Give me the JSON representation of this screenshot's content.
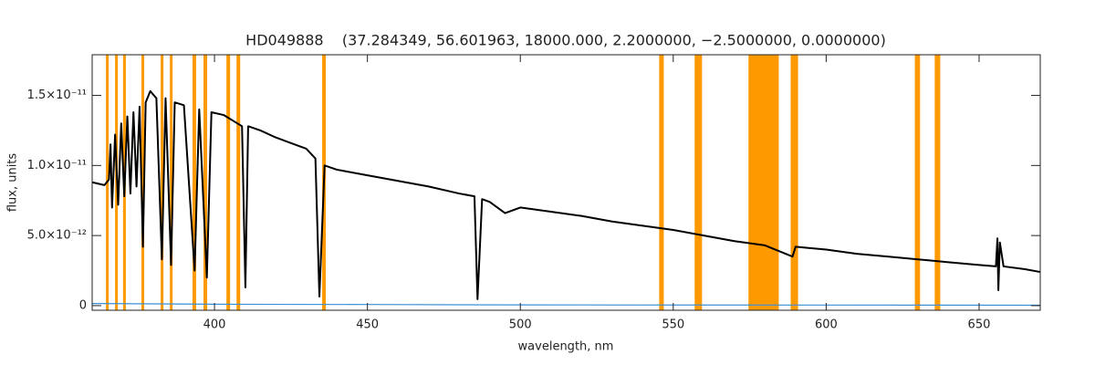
{
  "chart_data": {
    "type": "line",
    "title": "HD049888    (37.284349, 56.601963, 18000.000, 2.2000000, −2.5000000, 0.0000000)",
    "x_label": "wavelength, nm",
    "y_label": "flux, units",
    "xlim": [
      360,
      670
    ],
    "ylim": [
      -3.3e-13,
      1.79e-11
    ],
    "xticks": [
      400,
      450,
      500,
      550,
      600,
      650
    ],
    "yticks": [
      0,
      {
        "value": 5e-12,
        "label": "5.0×10⁻¹²"
      },
      {
        "value": 1e-11,
        "label": "1.0×10⁻¹¹"
      },
      {
        "value": 1.5e-11,
        "label": "1.5×10⁻¹¹"
      }
    ],
    "bands_color": "#ff9900",
    "bands": [
      [
        364.5,
        365.4
      ],
      [
        367.5,
        368.4
      ],
      [
        370.1,
        371.0
      ],
      [
        376.1,
        377.0
      ],
      [
        382.4,
        383.3
      ],
      [
        385.4,
        386.3
      ],
      [
        392.8,
        394.0
      ],
      [
        396.4,
        397.6
      ],
      [
        403.9,
        405.1
      ],
      [
        407.2,
        408.4
      ],
      [
        435.2,
        436.4
      ],
      [
        545.4,
        546.9
      ],
      [
        557.0,
        559.4
      ],
      [
        574.6,
        584.5
      ],
      [
        588.4,
        590.8
      ],
      [
        629.0,
        630.7
      ],
      [
        635.5,
        637.3
      ]
    ],
    "series": [
      {
        "color": "#000000",
        "x": [
          360,
          364,
          365.5,
          366,
          366.5,
          367.5,
          368.5,
          369.5,
          370.5,
          371.5,
          372.5,
          373.5,
          374.5,
          375.5,
          376.6,
          377.5,
          379,
          381,
          382.8,
          384,
          385.8,
          387,
          390,
          393.5,
          395,
          397.5,
          399,
          403,
          406,
          409,
          410.1,
          411,
          415,
          420,
          425,
          430,
          433,
          434.3,
          436,
          440,
          450,
          460,
          470,
          480,
          485,
          486,
          487.5,
          490,
          495,
          500,
          510,
          520,
          530,
          540,
          550,
          560,
          570,
          580,
          589,
          590,
          600,
          610,
          620,
          630,
          640,
          650,
          655.5,
          656,
          656.3,
          656.8,
          658,
          665,
          670
        ],
        "values": [
          8.8e-12,
          8.6e-12,
          9e-12,
          1.15e-11,
          7e-12,
          1.22e-11,
          7.2e-12,
          1.3e-11,
          7.8e-12,
          1.35e-11,
          8e-12,
          1.38e-11,
          8.5e-12,
          1.42e-11,
          4.2e-12,
          1.45e-11,
          1.53e-11,
          1.48e-11,
          3.3e-12,
          1.48e-11,
          2.9e-12,
          1.45e-11,
          1.43e-11,
          2.5e-12,
          1.4e-11,
          2e-12,
          1.38e-11,
          1.36e-11,
          1.32e-11,
          1.28e-11,
          1.3e-12,
          1.28e-11,
          1.25e-11,
          1.2e-11,
          1.16e-11,
          1.12e-11,
          1.05e-11,
          6.5e-13,
          1e-11,
          9.7e-12,
          9.3e-12,
          8.9e-12,
          8.5e-12,
          8e-12,
          7.8e-12,
          4.6e-13,
          7.6e-12,
          7.4e-12,
          6.6e-12,
          7e-12,
          6.7e-12,
          6.4e-12,
          6e-12,
          5.7e-12,
          5.4e-12,
          5e-12,
          4.6e-12,
          4.3e-12,
          3.5e-12,
          4.2e-12,
          4e-12,
          3.7e-12,
          3.5e-12,
          3.3e-12,
          3.1e-12,
          2.9e-12,
          2.8e-12,
          4.8e-12,
          1.1e-12,
          4.5e-12,
          2.8e-12,
          2.6e-12,
          2.4e-12
        ]
      },
      {
        "color": "#3a8fd8",
        "x": [
          360,
          400,
          450,
          500,
          600,
          670
        ],
        "values": [
          1.5e-13,
          1e-13,
          8e-14,
          5e-14,
          4e-14,
          3e-14
        ]
      }
    ]
  }
}
